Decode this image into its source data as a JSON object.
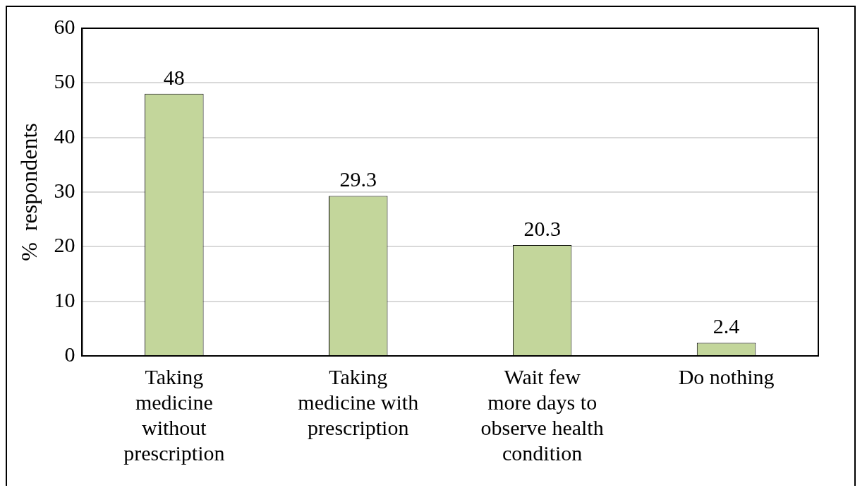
{
  "chart_data": {
    "type": "bar",
    "ylabel": "%  respondents",
    "categories": [
      "Taking\nmedicine\nwithout\nprescription",
      "Taking\nmedicine with\nprescription",
      "Wait few\nmore days to\nobserve health\ncondition",
      "Do nothing"
    ],
    "values": [
      48,
      29.3,
      20.3,
      2.4
    ],
    "color": "#c3d69b",
    "ylim": [
      0,
      60
    ],
    "yticks": [
      0,
      10,
      20,
      30,
      40,
      50,
      60
    ],
    "grid": "y",
    "data_labels": true,
    "legend": false
  }
}
